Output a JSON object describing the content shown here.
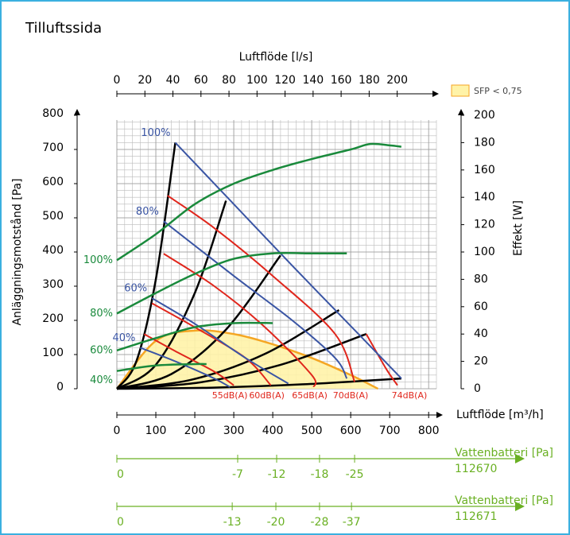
{
  "chart_data": {
    "type": "line",
    "title": "Tilluftssida",
    "xlabel": "Luftflöde [m³/h]",
    "x2label": "Luftflöde [l/s]",
    "ylabel": "Anläggningsmotstånd [Pa]",
    "y2label": "Effekt [W]",
    "xlim": [
      0,
      820
    ],
    "xticks": [
      0,
      100,
      200,
      300,
      400,
      500,
      600,
      700,
      800
    ],
    "x2lim": [
      0,
      228
    ],
    "x2ticks": [
      0,
      20,
      40,
      60,
      80,
      100,
      120,
      140,
      160,
      180,
      200
    ],
    "ylim": [
      0,
      800
    ],
    "yticks": [
      0,
      100,
      200,
      300,
      400,
      500,
      600,
      700,
      800
    ],
    "y2lim": [
      0,
      200
    ],
    "y2ticks": [
      0,
      20,
      40,
      60,
      80,
      100,
      120,
      140,
      160,
      180,
      200
    ],
    "grid": true,
    "legend": {
      "label": "SFP < 0,75",
      "position": "upper right"
    },
    "sfp_area": {
      "color": "#f5a623",
      "fill": "#fff3a8",
      "x": [
        0,
        100,
        200,
        300,
        400,
        500,
        600,
        670
      ],
      "values": [
        0,
        140,
        170,
        160,
        130,
        90,
        40,
        0
      ]
    },
    "speed_curves": {
      "color": "#3a55a4",
      "series": [
        {
          "name": "100%",
          "x": [
            150,
            300,
            450,
            620,
            730
          ],
          "values": [
            720,
            540,
            360,
            160,
            30
          ]
        },
        {
          "name": "80%",
          "x": [
            120,
            300,
            450,
            560,
            590
          ],
          "values": [
            490,
            330,
            200,
            90,
            30
          ]
        },
        {
          "name": "60%",
          "x": [
            90,
            200,
            330,
            440
          ],
          "values": [
            265,
            190,
            90,
            15
          ]
        },
        {
          "name": "40%",
          "x": [
            60,
            150,
            250,
            290
          ],
          "values": [
            120,
            80,
            30,
            5
          ]
        }
      ]
    },
    "sound_curves": {
      "color": "#e0261c",
      "series": [
        {
          "name": "55dB(A)",
          "x": [
            70,
            150,
            250,
            300
          ],
          "values": [
            160,
            110,
            50,
            10
          ]
        },
        {
          "name": "60dB(A)",
          "x": [
            90,
            200,
            330,
            395
          ],
          "values": [
            250,
            180,
            90,
            10
          ]
        },
        {
          "name": "65dB(A)",
          "x": [
            120,
            250,
            380,
            500,
            505
          ],
          "values": [
            395,
            300,
            180,
            40,
            5
          ]
        },
        {
          "name": "70dB(A)",
          "x": [
            130,
            250,
            400,
            560,
            610
          ],
          "values": [
            565,
            470,
            330,
            160,
            20
          ]
        },
        {
          "name": "74dB(A)",
          "x": [
            640,
            690,
            720
          ],
          "values": [
            160,
            60,
            10
          ]
        }
      ]
    },
    "system_curves": {
      "color": "#000000",
      "series": [
        {
          "x": [
            0,
            50,
            100,
            150
          ],
          "values": [
            0,
            80,
            320,
            720
          ]
        },
        {
          "x": [
            0,
            100,
            200,
            280
          ],
          "values": [
            0,
            70,
            280,
            550
          ]
        },
        {
          "x": [
            0,
            140,
            280,
            420
          ],
          "values": [
            0,
            43,
            173,
            390
          ]
        },
        {
          "x": [
            0,
            190,
            380,
            570
          ],
          "values": [
            0,
            26,
            102,
            230
          ]
        },
        {
          "x": [
            0,
            210,
            420,
            640
          ],
          "values": [
            0,
            18,
            70,
            160
          ]
        },
        {
          "x": [
            0,
            240,
            480,
            730
          ],
          "values": [
            0,
            3,
            13,
            30
          ]
        }
      ]
    },
    "power_curves": {
      "color": "#1a8a3c",
      "axis": "y2",
      "series": [
        {
          "name": "100%",
          "x": [
            0,
            100,
            200,
            300,
            400,
            500,
            600,
            650,
            700,
            730
          ],
          "values": [
            94,
            113,
            135,
            150,
            160,
            168,
            175,
            179,
            178,
            177
          ]
        },
        {
          "name": "80%",
          "x": [
            0,
            100,
            200,
            300,
            400,
            500,
            590
          ],
          "values": [
            55,
            70,
            84,
            95,
            99,
            99,
            99
          ]
        },
        {
          "name": "60%",
          "x": [
            0,
            100,
            200,
            300,
            400
          ],
          "values": [
            28,
            37,
            45,
            48,
            48
          ]
        },
        {
          "name": "40%",
          "x": [
            0,
            100,
            200,
            230
          ],
          "values": [
            13,
            17,
            18,
            18
          ]
        }
      ]
    },
    "water_batteries": {
      "color": "#6ab023",
      "series": [
        {
          "name": "Vattenbatteri [Pa]",
          "model": "112670",
          "x": [
            0,
            310,
            410,
            520,
            610
          ],
          "values": [
            0,
            -7,
            -12,
            -18,
            -25
          ]
        },
        {
          "name": "Vattenbatteri [Pa]",
          "model": "112671",
          "x": [
            0,
            296,
            408,
            520,
            602
          ],
          "values": [
            0,
            -13,
            -20,
            -28,
            -37
          ]
        }
      ]
    }
  }
}
